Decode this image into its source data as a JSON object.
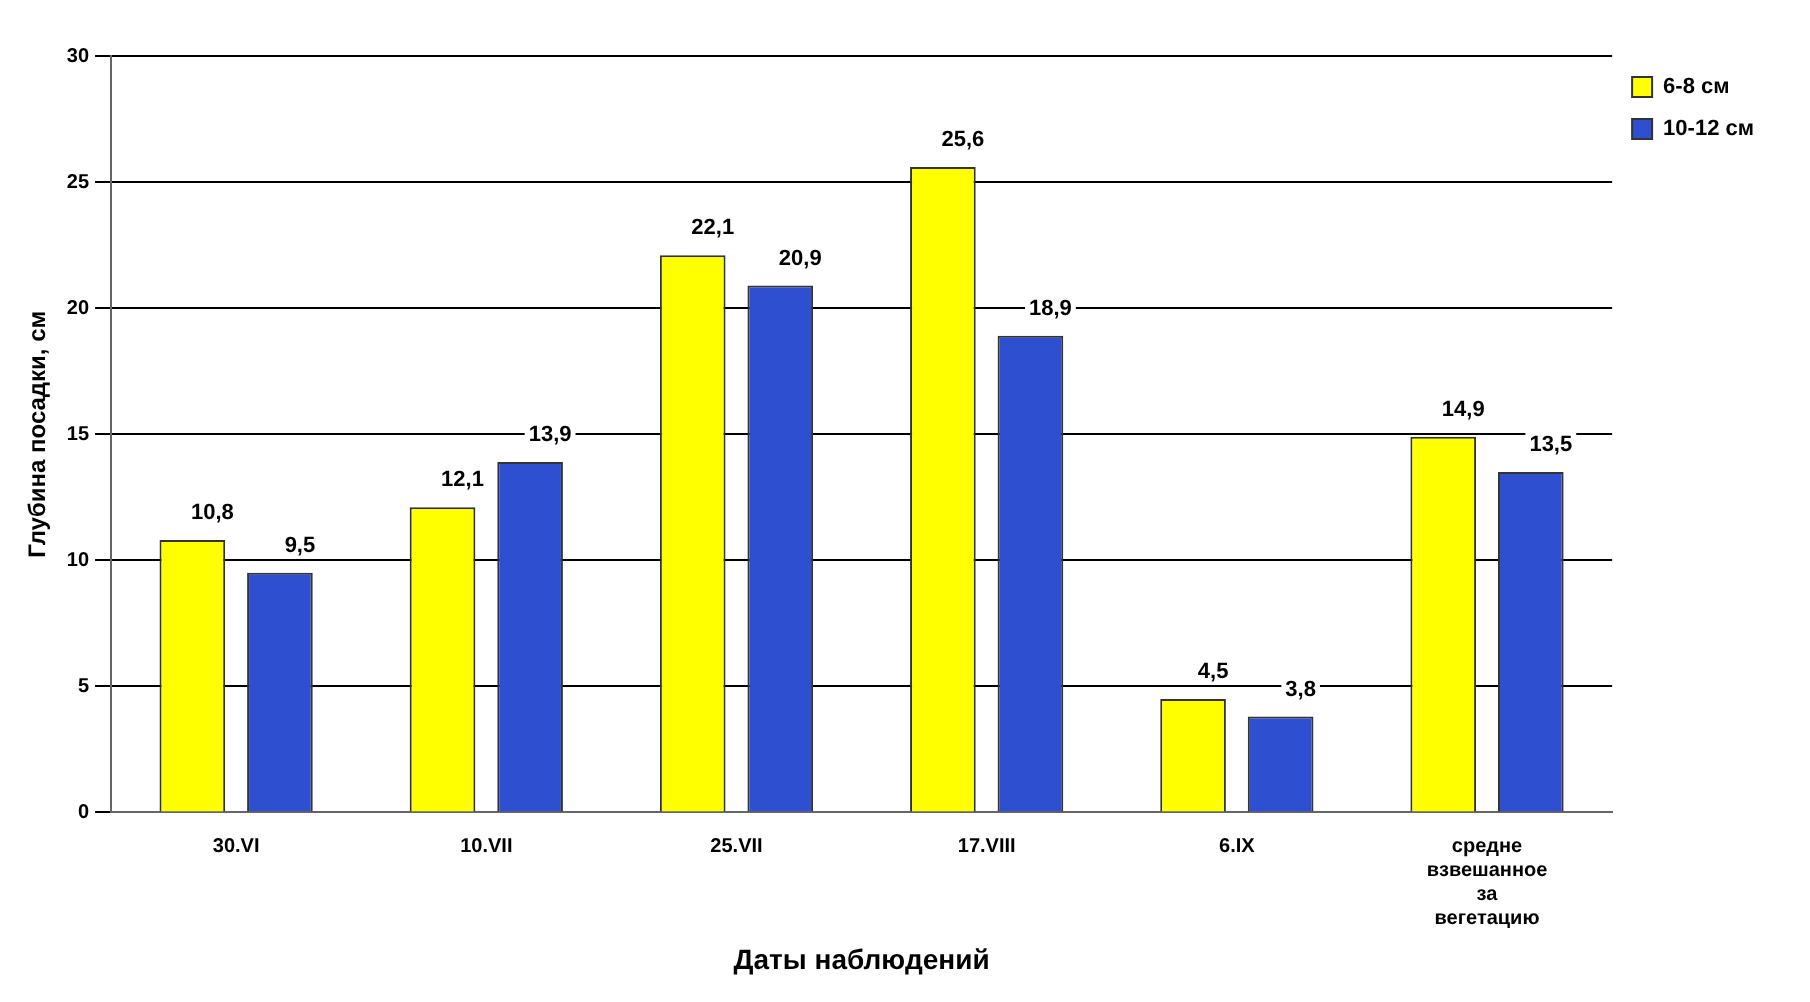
{
  "chart_data": {
    "type": "bar",
    "xlabel": "Даты наблюдений",
    "ylabel": "Глубина посадки, см",
    "categories": [
      "30.VI",
      "10.VII",
      "25.VII",
      "17.VIII",
      "6.IX",
      "средне взвешанное за вегетацию"
    ],
    "series": [
      {
        "name": "6-8 см",
        "color": "#ffff00",
        "values": [
          10.8,
          12.1,
          22.1,
          25.6,
          4.5,
          14.9
        ],
        "value_labels": [
          "10,8",
          "12,1",
          "22,1",
          "25,6",
          "4,5",
          "14,9"
        ]
      },
      {
        "name": "10-12 см",
        "color": "#2e4fd0",
        "values": [
          9.5,
          13.9,
          20.9,
          18.9,
          3.8,
          13.5
        ],
        "value_labels": [
          "9,5",
          "13,9",
          "20,9",
          "18,9",
          "3,8",
          "13,5"
        ]
      }
    ],
    "ylim": [
      0,
      30
    ],
    "yticks": [
      0,
      5,
      10,
      15,
      20,
      25,
      30
    ],
    "grid": "y",
    "legend": "top right"
  }
}
